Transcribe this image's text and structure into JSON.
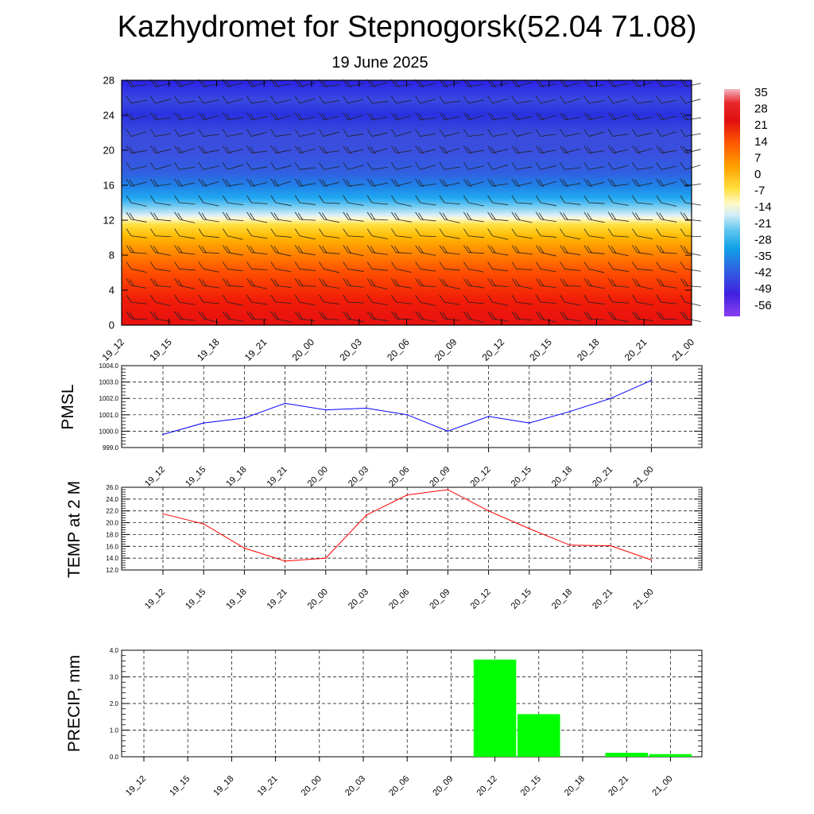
{
  "header": {
    "title": "Kazhydromet for Stepnogorsk(52.04 71.08)",
    "subtitle": "19 June 2025"
  },
  "times": [
    "19_12",
    "19_15",
    "19_18",
    "19_21",
    "20_00",
    "20_03",
    "20_06",
    "20_09",
    "20_12",
    "20_15",
    "20_18",
    "20_21",
    "21_00"
  ],
  "colors": {
    "pmsl": "#0000ff",
    "temp": "#ff0000",
    "precip": "#00ff00",
    "grid": "#000000"
  },
  "chart_data": [
    {
      "type": "heatmap",
      "description_key": "temperature_cross_section",
      "x": [
        "19_12",
        "19_15",
        "19_18",
        "19_21",
        "20_00",
        "20_03",
        "20_06",
        "20_09",
        "20_12",
        "20_15",
        "20_18",
        "20_21",
        "21_00"
      ],
      "y_ticks": [
        "0",
        "4",
        "8",
        "12",
        "16",
        "20",
        "24",
        "28"
      ],
      "ylim": [
        0,
        28
      ],
      "levels_profile": [
        {
          "y": 0,
          "value": 21
        },
        {
          "y": 2,
          "value": 21
        },
        {
          "y": 4,
          "value": 17
        },
        {
          "y": 6,
          "value": 13
        },
        {
          "y": 8,
          "value": 8
        },
        {
          "y": 10,
          "value": 3
        },
        {
          "y": 11.5,
          "value": -3
        },
        {
          "y": 12.5,
          "value": -14
        },
        {
          "y": 14,
          "value": -24
        },
        {
          "y": 15.5,
          "value": -33
        },
        {
          "y": 17,
          "value": -42
        },
        {
          "y": 18.5,
          "value": -50
        },
        {
          "y": 20,
          "value": -53
        },
        {
          "y": 22,
          "value": -52
        },
        {
          "y": 24,
          "value": -55
        },
        {
          "y": 26,
          "value": -52
        },
        {
          "y": 28,
          "value": -57
        }
      ],
      "colorbar_labels": [
        "35",
        "28",
        "21",
        "14",
        "7",
        "0",
        "-7",
        "-14",
        "-21",
        "-28",
        "-35",
        "-42",
        "-49",
        "-56"
      ],
      "has_wind_barbs": true
    },
    {
      "type": "line",
      "ylabel": "PMSL",
      "x": [
        "19_12",
        "19_15",
        "19_18",
        "19_21",
        "20_00",
        "20_03",
        "20_06",
        "20_09",
        "20_12",
        "20_15",
        "20_18",
        "20_21",
        "21_00"
      ],
      "values": [
        999.8,
        1000.5,
        1000.8,
        1001.7,
        1001.3,
        1001.4,
        1001.0,
        1000.0,
        1000.9,
        1000.5,
        1001.2,
        1002.0,
        1003.1
      ],
      "ylim": [
        999.0,
        1004.0
      ],
      "y_ticks": [
        "999.0",
        "1000.0",
        "1001.0",
        "1002.0",
        "1003.0",
        "1004.0"
      ],
      "grid": true
    },
    {
      "type": "line",
      "ylabel": "TEMP at 2 M",
      "x": [
        "19_12",
        "19_15",
        "19_18",
        "19_21",
        "20_00",
        "20_03",
        "20_06",
        "20_09",
        "20_12",
        "20_15",
        "20_18",
        "20_21",
        "21_00"
      ],
      "values": [
        21.5,
        19.8,
        15.7,
        13.5,
        14.0,
        21.3,
        24.7,
        25.6,
        22.0,
        19.0,
        16.2,
        16.1,
        13.7
      ],
      "ylim": [
        12.0,
        26.0
      ],
      "y_ticks": [
        "12.0",
        "14.0",
        "16.0",
        "18.0",
        "20.0",
        "22.0",
        "24.0",
        "26.0"
      ],
      "grid": true
    },
    {
      "type": "bar",
      "ylabel": "PRECIP, mm",
      "categories": [
        "19_12",
        "19_15",
        "19_18",
        "19_21",
        "20_00",
        "20_03",
        "20_06",
        "20_09",
        "20_12",
        "20_15",
        "20_18",
        "20_21",
        "21_00"
      ],
      "values": [
        0,
        0,
        0,
        0,
        0,
        0,
        0,
        0,
        3.65,
        1.6,
        0,
        0.15,
        0.1
      ],
      "ylim": [
        0.0,
        4.0
      ],
      "y_ticks": [
        "0.0",
        "1.0",
        "2.0",
        "3.0",
        "4.0"
      ],
      "grid": true
    }
  ]
}
